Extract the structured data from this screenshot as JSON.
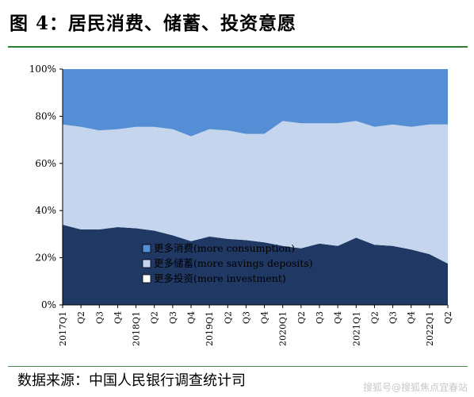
{
  "figure_title": "图 4：居民消费、储蓄、投资意愿",
  "source": "数据来源：中国人民银行调查统计司",
  "watermark": "搜狐号@搜狐焦点宜春站",
  "chart_data": {
    "type": "area",
    "stacked": true,
    "categories": [
      "2017Q1",
      "Q2",
      "Q3",
      "Q4",
      "2018Q1",
      "Q2",
      "Q3",
      "Q4",
      "2019Q1",
      "Q2",
      "Q3",
      "Q4",
      "2020Q1",
      "Q2",
      "Q3",
      "Q4",
      "2021Q1",
      "Q2",
      "Q3",
      "Q4",
      "2022Q1",
      "Q2"
    ],
    "series": [
      {
        "name": "更多投资(more investment)",
        "color": "#203864",
        "values": [
          34,
          32,
          32,
          33,
          32.5,
          31.5,
          29.5,
          27,
          29,
          28,
          27.5,
          26.5,
          25,
          24,
          26,
          25,
          28.5,
          25.5,
          25,
          23.5,
          21.5,
          17.5
        ]
      },
      {
        "name": "更多储蓄(more savings deposits)",
        "color": "#c5d5ee",
        "values": [
          42.5,
          43.5,
          42,
          41.5,
          43,
          44,
          45,
          44.5,
          45.5,
          46,
          45,
          46,
          53,
          53,
          51,
          52,
          49.5,
          50,
          51.5,
          52,
          55,
          59
        ]
      },
      {
        "name": "更多消费(more consumption)",
        "color": "#558ed5",
        "values": [
          23.5,
          24.5,
          26,
          25.5,
          24.5,
          24.5,
          25.5,
          28.5,
          25.5,
          26,
          27.5,
          27.5,
          22,
          23,
          23,
          23,
          22,
          24.5,
          23.5,
          24.5,
          23.5,
          23.5
        ]
      }
    ],
    "legend_order": [
      2,
      1,
      0
    ],
    "y_ticks": [
      "0%",
      "20%",
      "40%",
      "60%",
      "80%",
      "100%"
    ],
    "ylim": [
      0,
      100
    ],
    "legend_position": "bottom-center",
    "grid": false
  }
}
